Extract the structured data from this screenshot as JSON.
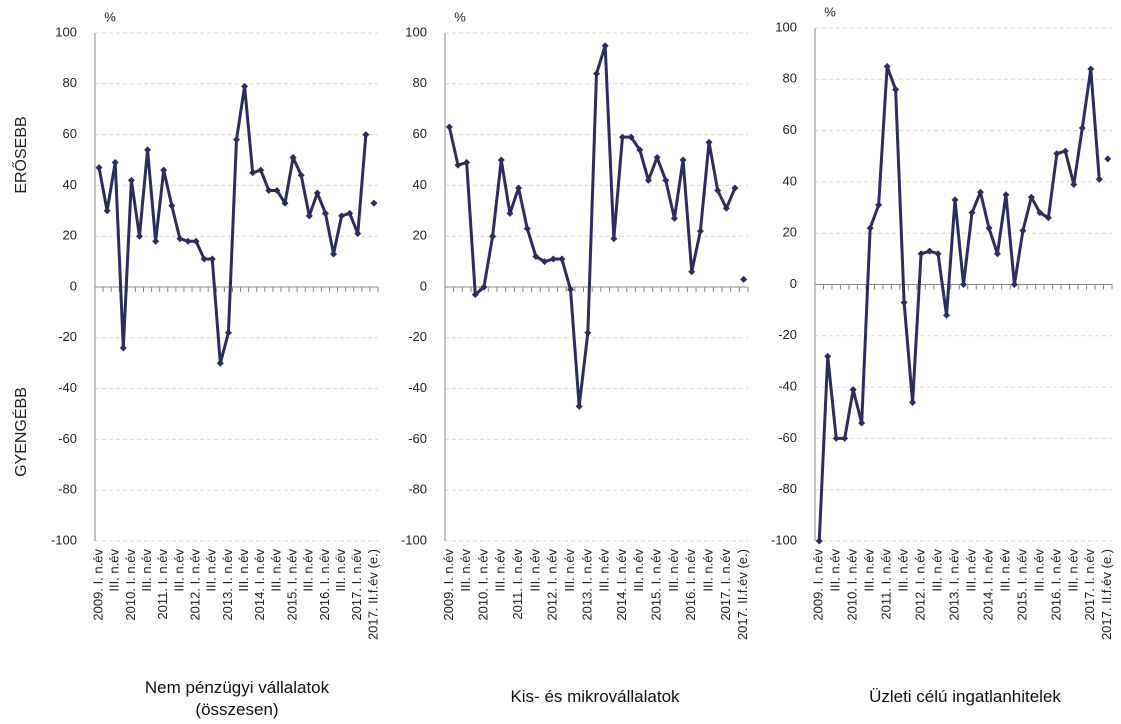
{
  "annotations": {
    "stronger": "ERŐSEBB",
    "weaker": "GYENGÉBB"
  },
  "chart_data": [
    {
      "type": "line",
      "title": "Nem pénzügyi vállalatok (összesen)",
      "y_unit": "%",
      "categories": [
        "2009. I. n.év",
        null,
        "III. n.év",
        null,
        "2010. I. n.év",
        null,
        "III. n.év",
        null,
        "2011. I. n.év",
        null,
        "III. n.év",
        null,
        "2012. I. n.év",
        null,
        "III. n.év",
        null,
        "2013. I. n.év",
        null,
        "III. n.év",
        null,
        "2014. I. n.év",
        null,
        "III. n.év",
        null,
        "2015. I. n.év",
        null,
        "III. n.év",
        null,
        "2016. I. n.év",
        null,
        "III. n.év",
        null,
        "2017. I. n.év",
        null,
        "2017. II.f.év (e.)"
      ],
      "series": [
        {
          "color": "#2b2d5f",
          "values": [
            47,
            30,
            49,
            -24,
            42,
            20,
            54,
            18,
            46,
            32,
            19,
            18,
            18,
            11,
            11,
            -30,
            -18,
            58,
            79,
            45,
            46,
            38,
            38,
            33,
            51,
            44,
            28,
            37,
            29,
            13,
            28,
            29,
            21,
            60,
            null
          ]
        },
        {
          "color": "#2b2d5f",
          "values": [
            null,
            null,
            null,
            null,
            null,
            null,
            null,
            null,
            null,
            null,
            null,
            null,
            null,
            null,
            null,
            null,
            null,
            null,
            null,
            null,
            null,
            null,
            null,
            null,
            null,
            null,
            null,
            null,
            null,
            null,
            null,
            null,
            null,
            null,
            33
          ]
        }
      ],
      "ylim": [
        -100,
        100
      ],
      "yticks": [
        -100,
        -80,
        -60,
        -40,
        -20,
        0,
        20,
        40,
        60,
        80,
        100
      ],
      "grid": true
    },
    {
      "type": "line",
      "title": "Kis- és mikrovállalatok",
      "y_unit": "%",
      "categories": [
        "2009. I. n.év",
        null,
        "III. n.év",
        null,
        "2010. I. n.év",
        null,
        "III. n.év",
        null,
        "2011. I. n.év",
        null,
        "III. n.év",
        null,
        "2012. I. n.év",
        null,
        "III. n.év",
        null,
        "2013. I. n.év",
        null,
        "III. n.év",
        null,
        "2014. I. n.év",
        null,
        "III. n.év",
        null,
        "2015. I. n.év",
        null,
        "III. n.év",
        null,
        "2016. I. n.év",
        null,
        "III. n.év",
        null,
        "2017. I. n.év",
        null,
        "2017. II.f.év (e.)"
      ],
      "series": [
        {
          "color": "#2b2d5f",
          "values": [
            63,
            48,
            49,
            -3,
            0,
            20,
            50,
            29,
            39,
            23,
            12,
            10,
            11,
            11,
            -1,
            -47,
            -18,
            84,
            95,
            19,
            59,
            59,
            54,
            42,
            51,
            42,
            27,
            50,
            6,
            22,
            57,
            38,
            31,
            39,
            null
          ]
        },
        {
          "color": "#2b2d5f",
          "values": [
            null,
            null,
            null,
            null,
            null,
            null,
            null,
            null,
            null,
            null,
            null,
            null,
            null,
            null,
            null,
            null,
            null,
            null,
            null,
            null,
            null,
            null,
            null,
            null,
            null,
            null,
            null,
            null,
            null,
            null,
            null,
            null,
            null,
            null,
            3
          ]
        }
      ],
      "ylim": [
        -100,
        100
      ],
      "yticks": [
        -100,
        -80,
        -60,
        -40,
        -20,
        0,
        20,
        40,
        60,
        80,
        100
      ],
      "grid": true
    },
    {
      "type": "line",
      "title": "Üzleti célú ingatlanhitelek",
      "y_unit": "%",
      "categories": [
        "2009. I. n.év",
        null,
        "III. n.év",
        null,
        "2010. I. n.év",
        null,
        "III. n.év",
        null,
        "2011. I. n.év",
        null,
        "III. n.év",
        null,
        "2012. I. n.év",
        null,
        "III. n.év",
        null,
        "2013. I. n.év",
        null,
        "III. n.év",
        null,
        "2014. I. n.év",
        null,
        "III. n.év",
        null,
        "2015. I. n.év",
        null,
        "III. n.év",
        null,
        "2016. I. n.év",
        null,
        "III. n.év",
        null,
        "2017. I. n.év",
        null,
        "2017. II.f.év (e.)"
      ],
      "series": [
        {
          "color": "#2b2d5f",
          "values": [
            -100,
            -28,
            -60,
            -60,
            -41,
            -54,
            22,
            31,
            85,
            76,
            -7,
            -46,
            12,
            13,
            12,
            -12,
            33,
            0,
            28,
            36,
            22,
            12,
            35,
            0,
            21,
            34,
            28,
            26,
            51,
            52,
            39,
            61,
            84,
            41,
            null
          ]
        },
        {
          "color": "#2b2d5f",
          "values": [
            null,
            null,
            null,
            null,
            null,
            null,
            null,
            null,
            null,
            null,
            null,
            null,
            null,
            null,
            null,
            null,
            null,
            null,
            null,
            null,
            null,
            null,
            null,
            null,
            null,
            null,
            null,
            null,
            null,
            null,
            null,
            null,
            null,
            null,
            49
          ]
        }
      ],
      "ylim": [
        -100,
        100
      ],
      "yticks": [
        -100,
        -80,
        -60,
        -40,
        -20,
        0,
        20,
        40,
        60,
        80,
        100
      ],
      "grid": true
    }
  ]
}
